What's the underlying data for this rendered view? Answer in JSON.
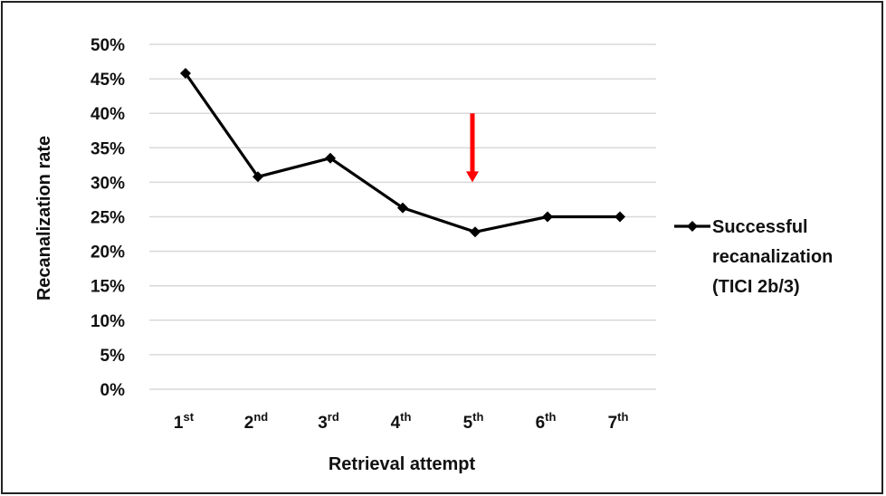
{
  "chart_data": {
    "type": "line",
    "title": "",
    "xlabel": "Retrieval attempt",
    "ylabel": "Recanalization rate",
    "categories": [
      {
        "base": "1",
        "sup": "st"
      },
      {
        "base": "2",
        "sup": "nd"
      },
      {
        "base": "3",
        "sup": "rd"
      },
      {
        "base": "4",
        "sup": "th"
      },
      {
        "base": "5",
        "sup": "th"
      },
      {
        "base": "6",
        "sup": "th"
      },
      {
        "base": "7",
        "sup": "th"
      }
    ],
    "series": [
      {
        "name": "Successful recanalization (TICI 2b/3)",
        "legend_lines": [
          "Successful",
          "recanalization",
          "(TICI 2b/3)"
        ],
        "values": [
          45.8,
          30.8,
          33.5,
          26.3,
          22.8,
          25.0,
          25.0
        ],
        "color": "#000000",
        "marker": "diamond"
      }
    ],
    "ylim": [
      0,
      50
    ],
    "yticks": [
      0,
      5,
      10,
      15,
      20,
      25,
      30,
      35,
      40,
      45,
      50
    ],
    "yticks_labels": [
      "0%",
      "5%",
      "10%",
      "15%",
      "20%",
      "25%",
      "30%",
      "35%",
      "40%",
      "45%",
      "50%"
    ],
    "grid": true,
    "grid_color": "#d9d9d9",
    "legend_position": "right",
    "annotation": {
      "type": "arrow",
      "color": "#ff0000",
      "category_index": 4,
      "from_y": 40,
      "to_y": 30
    }
  }
}
